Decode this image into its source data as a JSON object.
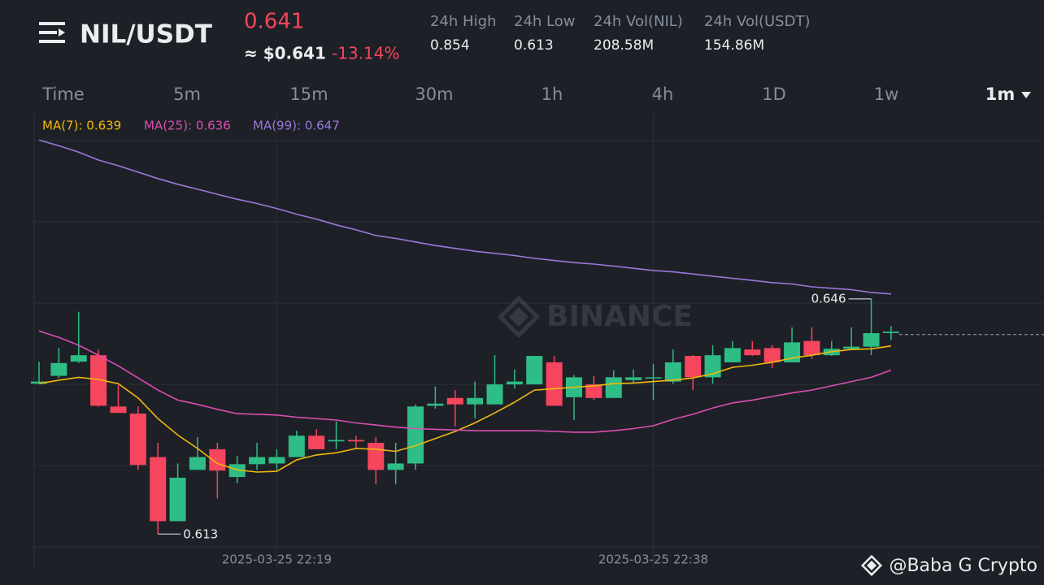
{
  "header": {
    "title": "NIL/USDT",
    "price": 0.641,
    "usd_price": "≈ $0.641",
    "change": "-13.14%",
    "stats": [
      {
        "label": "24h High",
        "value": "0.854"
      },
      {
        "label": "24h Low",
        "value": "0.613"
      },
      {
        "label": "24h Vol(NIL)",
        "value": "208.58M"
      },
      {
        "label": "24h Vol(USDT)",
        "value": "154.86M"
      }
    ]
  },
  "tabs": {
    "items": [
      "Time",
      "5m",
      "15m",
      "30m",
      "1h",
      "4h",
      "1D",
      "1w",
      "1m"
    ],
    "active": "1m"
  },
  "watermark": "BINANCE",
  "footer": "@Baba G Crypto",
  "chart_data": {
    "type": "candlestick",
    "categories": [
      null,
      null,
      null,
      null,
      null,
      null,
      null,
      null,
      null,
      null,
      null,
      null,
      "2025-03-25 22:19",
      null,
      null,
      null,
      null,
      null,
      null,
      null,
      null,
      null,
      null,
      null,
      null,
      null,
      null,
      null,
      null,
      null,
      null,
      "2025-03-25 22:38",
      null,
      null,
      null,
      null,
      null,
      null,
      null,
      null,
      null,
      null,
      null,
      null
    ],
    "open": [
      0.6341,
      0.6352,
      0.6372,
      0.6381,
      0.6309,
      0.6299,
      0.6238,
      0.6148,
      0.622,
      0.6249,
      0.621,
      0.6228,
      0.6229,
      0.6238,
      0.6268,
      0.626,
      0.6262,
      0.6258,
      0.622,
      0.6229,
      0.631,
      0.6321,
      0.6312,
      0.6312,
      0.634,
      0.634,
      0.6371,
      0.6322,
      0.634,
      0.6321,
      0.6346,
      0.6349,
      0.6344,
      0.638,
      0.635,
      0.6371,
      0.6389,
      0.6391,
      0.6371,
      0.6401,
      0.6381,
      0.639,
      0.6393,
      0.6412
    ],
    "high": [
      0.6372,
      0.6391,
      0.6442,
      0.6389,
      0.6339,
      0.6309,
      0.6258,
      0.6229,
      0.6266,
      0.6258,
      0.624,
      0.6258,
      0.6249,
      0.6275,
      0.6277,
      0.6288,
      0.6268,
      0.6266,
      0.6258,
      0.6312,
      0.6337,
      0.6332,
      0.6344,
      0.6381,
      0.6361,
      0.638,
      0.638,
      0.6353,
      0.6352,
      0.636,
      0.6361,
      0.6369,
      0.6389,
      0.6381,
      0.6395,
      0.6401,
      0.6401,
      0.6395,
      0.642,
      0.642,
      0.6401,
      0.642,
      0.646,
      0.6422
    ],
    "low": [
      0.6341,
      0.6349,
      0.637,
      0.6309,
      0.63,
      0.622,
      0.613,
      0.6148,
      0.622,
      0.618,
      0.6201,
      0.622,
      0.622,
      0.6238,
      0.6249,
      0.6249,
      0.6249,
      0.62,
      0.62,
      0.622,
      0.6306,
      0.6281,
      0.6292,
      0.6312,
      0.6334,
      0.634,
      0.631,
      0.629,
      0.6318,
      0.6321,
      0.6341,
      0.6318,
      0.6341,
      0.6332,
      0.6341,
      0.6371,
      0.638,
      0.6363,
      0.6371,
      0.6376,
      0.638,
      0.6389,
      0.6381,
      0.6402
    ],
    "close": [
      0.6344,
      0.637,
      0.6381,
      0.631,
      0.63,
      0.6227,
      0.6148,
      0.6209,
      0.6238,
      0.6219,
      0.6228,
      0.6238,
      0.6238,
      0.6268,
      0.6249,
      0.6262,
      0.626,
      0.622,
      0.6229,
      0.6309,
      0.6313,
      0.6312,
      0.6321,
      0.634,
      0.6344,
      0.638,
      0.631,
      0.635,
      0.6321,
      0.635,
      0.635,
      0.635,
      0.6371,
      0.635,
      0.6381,
      0.6391,
      0.6381,
      0.6371,
      0.6399,
      0.6381,
      0.639,
      0.6393,
      0.6412,
      0.6414
    ],
    "up_color": "#2ebd85",
    "down_color": "#f6465d",
    "series": [
      {
        "name": "MA(7): 0.639",
        "color": "#f0b90b",
        "values": [
          0.6341,
          0.6346,
          0.635,
          0.6347,
          0.6341,
          0.6321,
          0.6292,
          0.6269,
          0.625,
          0.6229,
          0.622,
          0.6217,
          0.6218,
          0.6234,
          0.6241,
          0.6244,
          0.625,
          0.6249,
          0.6246,
          0.6254,
          0.6264,
          0.6274,
          0.6286,
          0.63,
          0.6315,
          0.6332,
          0.6334,
          0.6336,
          0.6338,
          0.6341,
          0.6342,
          0.6344,
          0.6346,
          0.6349,
          0.6355,
          0.6364,
          0.6367,
          0.6371,
          0.6377,
          0.6381,
          0.6386,
          0.6389,
          0.639,
          0.6394
        ]
      },
      {
        "name": "MA(25): 0.636",
        "color": "#d94fb0",
        "values": [
          0.6415,
          0.6406,
          0.6395,
          0.6381,
          0.6366,
          0.6349,
          0.6332,
          0.6318,
          0.6312,
          0.6305,
          0.6299,
          0.6298,
          0.6297,
          0.6294,
          0.6292,
          0.629,
          0.6286,
          0.6283,
          0.628,
          0.6278,
          0.6277,
          0.6276,
          0.6275,
          0.6275,
          0.6275,
          0.6275,
          0.6274,
          0.6273,
          0.6273,
          0.6275,
          0.6278,
          0.6282,
          0.6291,
          0.6298,
          0.6307,
          0.6314,
          0.6318,
          0.6323,
          0.6328,
          0.6332,
          0.6338,
          0.6344,
          0.635,
          0.636
        ]
      },
      {
        "name": "MA(99): 0.647",
        "color": "#9a78dc",
        "values": [
          0.6683,
          0.6675,
          0.6666,
          0.6655,
          0.6647,
          0.6638,
          0.6629,
          0.6621,
          0.6614,
          0.6607,
          0.66,
          0.6594,
          0.6587,
          0.6579,
          0.6572,
          0.6564,
          0.6557,
          0.6549,
          0.6545,
          0.654,
          0.6535,
          0.6531,
          0.6527,
          0.6524,
          0.6521,
          0.6517,
          0.6514,
          0.6511,
          0.6509,
          0.6506,
          0.6503,
          0.65,
          0.6498,
          0.6495,
          0.6492,
          0.6489,
          0.6486,
          0.6483,
          0.6481,
          0.6477,
          0.6475,
          0.6473,
          0.6469,
          0.6467
        ]
      }
    ],
    "ylim": [
      0.6112,
      0.672
    ]
  }
}
